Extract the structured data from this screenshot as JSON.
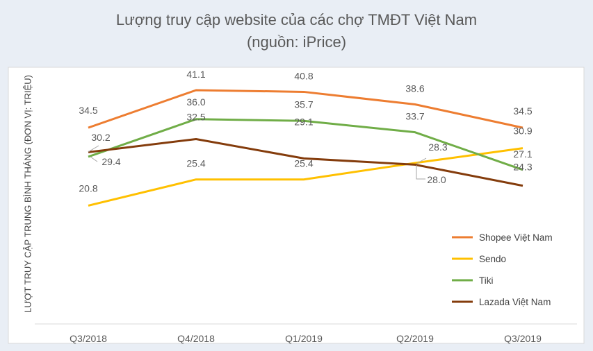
{
  "chart_data": {
    "type": "line",
    "title": "Lượng truy cập website của các chợ TMĐT Việt Nam",
    "subtitle": "(nguồn: iPrice)",
    "ylabel": "LƯỢT TRUY CẬP TRUNG BÌNH THÁNG (ĐƠN VỊ: TRIỆU)",
    "xlabel": "",
    "categories": [
      "Q3/2018",
      "Q4/2018",
      "Q1/2019",
      "Q2/2019",
      "Q3/2019"
    ],
    "ylim": [
      0,
      45
    ],
    "grid": false,
    "legend": "right",
    "series": [
      {
        "name": "Shopee Việt Nam",
        "color": "#ed7d31",
        "values": [
          34.5,
          41.1,
          40.8,
          38.6,
          34.5
        ]
      },
      {
        "name": "Sendo",
        "color": "#ffc000",
        "values": [
          20.8,
          25.4,
          25.4,
          28.3,
          30.9
        ]
      },
      {
        "name": "Tiki",
        "color": "#70ad47",
        "values": [
          29.4,
          36.0,
          35.7,
          33.7,
          27.1
        ]
      },
      {
        "name": "Lazada Việt Nam",
        "color": "#843c0c",
        "values": [
          30.2,
          32.5,
          29.1,
          28.0,
          24.3
        ]
      }
    ]
  }
}
